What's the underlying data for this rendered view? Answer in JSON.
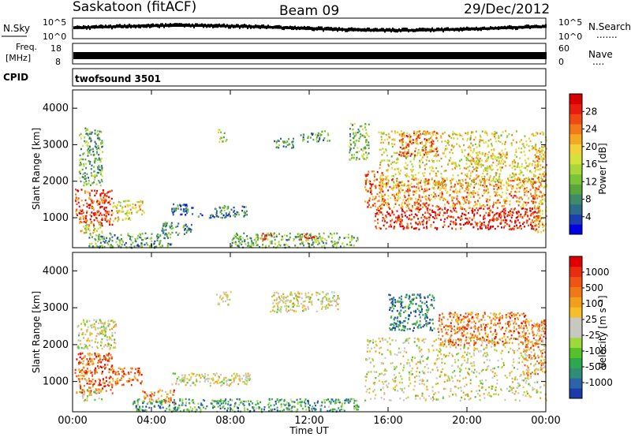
{
  "header": {
    "station": "Saskatoon (fitACF)",
    "beam": "Beam 09",
    "date": "29/Dec/2012"
  },
  "panels": {
    "nsky_label": "N.Sky",
    "nsearch_label": "N.Search",
    "nsearch_dots": ".......",
    "freq_label_1": "Freq.",
    "freq_label_2": "[MHz]",
    "nave_label": "Nave",
    "nave_dots": "....",
    "cpid_label": "CPID",
    "cpid_value": "twofsound 3501",
    "noise_ticks_left": [
      "10^5",
      "10^0"
    ],
    "noise_ticks_right": [
      "10^5",
      "10^0"
    ],
    "freq_ticks_left": [
      "18",
      "8"
    ],
    "nave_ticks_right": [
      "60",
      "0"
    ]
  },
  "chart_data": [
    {
      "type": "heatmap",
      "name": "power",
      "ylabel": "Slant Range [km]",
      "y_ticks": [
        1000,
        2000,
        3000,
        4000
      ],
      "ylim": [
        180,
        4500
      ],
      "xlim": [
        0,
        24
      ],
      "colorbar": {
        "label": "Power [dB]",
        "ticks": [
          "28",
          "24",
          "20",
          "16",
          "12",
          "8",
          "4"
        ],
        "colors": [
          "#0000e6",
          "#1c3fb0",
          "#2e6a8c",
          "#3f8a68",
          "#5ba63c",
          "#7dc337",
          "#a9d638",
          "#d6e23c",
          "#f1d23a",
          "#f5a822",
          "#f27a18",
          "#ee4a12",
          "#e81c10",
          "#d60000"
        ]
      },
      "regions": [
        {
          "t0": 0.1,
          "t1": 2.0,
          "r0": 800,
          "r1": 1800,
          "level": 0.85
        },
        {
          "t0": 0.3,
          "t1": 1.5,
          "r0": 600,
          "r1": 900,
          "level": 0.55
        },
        {
          "t0": 0.3,
          "t1": 1.5,
          "r0": 1900,
          "r1": 3500,
          "level": 0.35
        },
        {
          "t0": 2.0,
          "t1": 2.9,
          "r0": 900,
          "r1": 1500,
          "level": 0.55
        },
        {
          "t0": 2.9,
          "t1": 3.6,
          "r0": 1100,
          "r1": 1500,
          "level": 0.65
        },
        {
          "t0": 0.8,
          "t1": 5.0,
          "r0": 200,
          "r1": 600,
          "level": 0.3
        },
        {
          "t0": 5.0,
          "t1": 6.2,
          "r0": 1100,
          "r1": 1400,
          "level": 0.2
        },
        {
          "t0": 4.5,
          "t1": 6.0,
          "r0": 550,
          "r1": 900,
          "level": 0.3
        },
        {
          "t0": 6.3,
          "t1": 7.9,
          "r0": 1000,
          "r1": 1150,
          "level": 0.2
        },
        {
          "t0": 7.2,
          "t1": 8.8,
          "r0": 1050,
          "r1": 1350,
          "level": 0.25
        },
        {
          "t0": 7.3,
          "t1": 7.8,
          "r0": 3100,
          "r1": 3450,
          "level": 0.45
        },
        {
          "t0": 8.0,
          "t1": 14.5,
          "r0": 200,
          "r1": 600,
          "level": 0.35
        },
        {
          "t0": 9.5,
          "t1": 10.2,
          "r0": 400,
          "r1": 600,
          "level": 0.8
        },
        {
          "t0": 11.5,
          "t1": 12.4,
          "r0": 400,
          "r1": 600,
          "level": 0.75
        },
        {
          "t0": 10.2,
          "t1": 11.2,
          "r0": 2900,
          "r1": 3200,
          "level": 0.3
        },
        {
          "t0": 11.5,
          "t1": 13.0,
          "r0": 3100,
          "r1": 3400,
          "level": 0.3
        },
        {
          "t0": 14.0,
          "t1": 15.0,
          "r0": 2600,
          "r1": 3600,
          "level": 0.4
        },
        {
          "t0": 14.8,
          "t1": 15.7,
          "r0": 1300,
          "r1": 2300,
          "level": 0.75
        },
        {
          "t0": 15.3,
          "t1": 23.7,
          "r0": 700,
          "r1": 1300,
          "level": 0.9
        },
        {
          "t0": 15.5,
          "t1": 23.5,
          "r0": 1300,
          "r1": 2100,
          "level": 0.7
        },
        {
          "t0": 15.5,
          "t1": 24.0,
          "r0": 1900,
          "r1": 3400,
          "level": 0.55
        },
        {
          "t0": 16.5,
          "t1": 18.5,
          "r0": 2700,
          "r1": 3400,
          "level": 0.75
        },
        {
          "t0": 20.0,
          "t1": 22.0,
          "r0": 2300,
          "r1": 2800,
          "level": 0.6
        },
        {
          "t0": 23.4,
          "t1": 24.0,
          "r0": 600,
          "r1": 3000,
          "level": 0.65
        }
      ]
    },
    {
      "type": "heatmap",
      "name": "velocity",
      "ylabel": "Slant Range [km]",
      "y_ticks": [
        1000,
        2000,
        3000,
        4000
      ],
      "ylim": [
        180,
        4500
      ],
      "xlim": [
        0,
        24
      ],
      "xlabel": "Time UT",
      "x_ticks": [
        "00:00",
        "04:00",
        "08:00",
        "12:00",
        "16:00",
        "20:00",
        "00:00"
      ],
      "colorbar": {
        "label": "Velocity [m s⁻¹]",
        "ticks": [
          "1000",
          "500",
          "100",
          "25",
          "-25",
          "-100",
          "-500",
          "-1000"
        ],
        "colors": [
          "#1c3aa8",
          "#2d63a8",
          "#2f8d78",
          "#2ea84e",
          "#56c22a",
          "#9ed83d",
          "#c8c8c0",
          "#c8c8c0",
          "#f4c02a",
          "#f2a01c",
          "#f07818",
          "#ee5414",
          "#e82c10",
          "#e00000"
        ]
      },
      "regions": [
        {
          "t0": 0.1,
          "t1": 2.0,
          "r0": 700,
          "r1": 1800,
          "level": 0.82
        },
        {
          "t0": 0.3,
          "t1": 1.5,
          "r0": 500,
          "r1": 800,
          "level": 0.5
        },
        {
          "t0": 0.2,
          "t1": 2.2,
          "r0": 1900,
          "r1": 2700,
          "level": 0.5
        },
        {
          "t0": 2.0,
          "t1": 3.5,
          "r0": 900,
          "r1": 1400,
          "level": 0.8
        },
        {
          "t0": 3.5,
          "t1": 5.2,
          "r0": 450,
          "r1": 800,
          "level": 0.75
        },
        {
          "t0": 5.0,
          "t1": 9.0,
          "r0": 900,
          "r1": 1250,
          "level": 0.5
        },
        {
          "t0": 7.2,
          "t1": 8.0,
          "r0": 3100,
          "r1": 3450,
          "level": 0.5
        },
        {
          "t0": 3.0,
          "t1": 14.5,
          "r0": 200,
          "r1": 550,
          "level": 0.25
        },
        {
          "t0": 10.0,
          "t1": 13.5,
          "r0": 2900,
          "r1": 3450,
          "level": 0.5
        },
        {
          "t0": 14.8,
          "t1": 24.0,
          "r0": 500,
          "r1": 2200,
          "level": 0.5
        },
        {
          "t0": 16.0,
          "t1": 18.3,
          "r0": 2400,
          "r1": 3400,
          "level": 0.15
        },
        {
          "t0": 18.5,
          "t1": 23.0,
          "r0": 2000,
          "r1": 2900,
          "level": 0.75
        },
        {
          "t0": 22.8,
          "t1": 24.0,
          "r0": 1200,
          "r1": 2700,
          "level": 0.72
        }
      ]
    }
  ]
}
